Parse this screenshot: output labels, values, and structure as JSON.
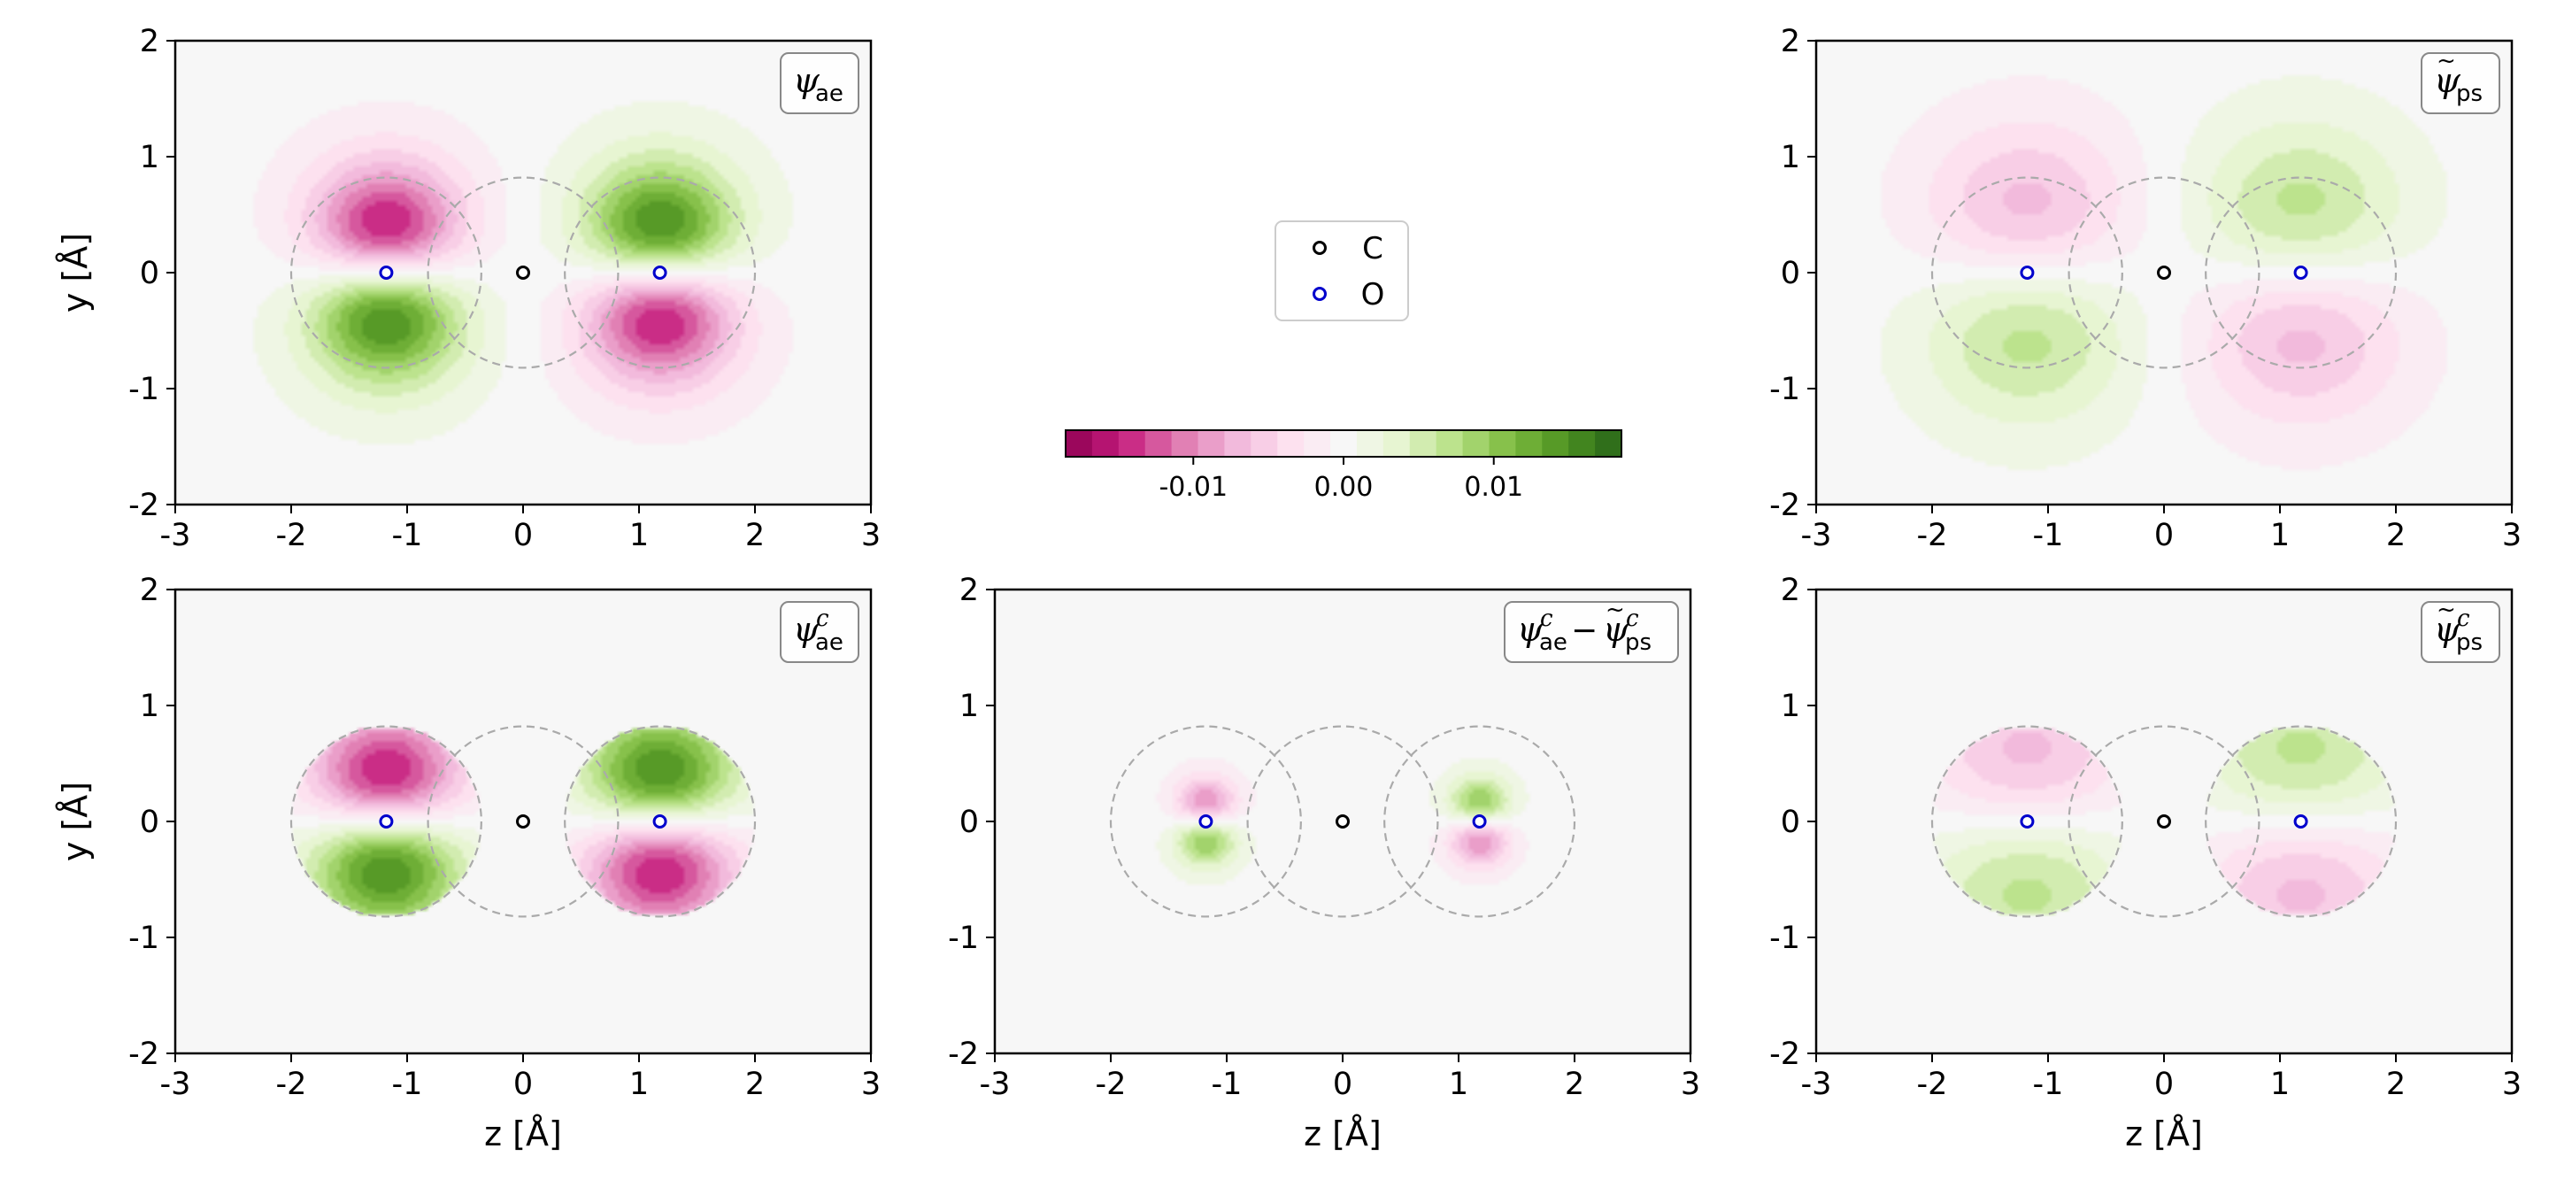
{
  "chart_data": [
    {
      "type": "heatmap",
      "panel": "top-left",
      "label": {
        "symbol": "ψ",
        "sub": "ae",
        "sup": "",
        "tilde": false
      },
      "xlim": [
        -3,
        3
      ],
      "ylim": [
        -2,
        2
      ],
      "xticks": [
        "-3",
        "-2",
        "-1",
        "0",
        "1",
        "2",
        "3"
      ],
      "yticks": [
        "2",
        "1",
        "0",
        "-1",
        "-2"
      ],
      "xlabel": "",
      "ylabel": "y [Å]",
      "field": {
        "model": "pz_antibonding",
        "lobe_width": 0.42,
        "tail_width": 0.6,
        "tail_weight": 0.35,
        "amplitude": 1.0,
        "cutoff": null
      },
      "background": "#f7f7f5"
    },
    {
      "type": "heatmap",
      "panel": "top-right",
      "label": {
        "symbol": "ψ",
        "sub": "ps",
        "sup": "",
        "tilde": true
      },
      "xlim": [
        -3,
        3
      ],
      "ylim": [
        -2,
        2
      ],
      "xticks": [
        "-3",
        "-2",
        "-1",
        "0",
        "1",
        "2",
        "3"
      ],
      "yticks": [
        "2",
        "1",
        "0",
        "-1",
        "-2"
      ],
      "xlabel": "",
      "ylabel": "",
      "field": {
        "model": "pz_smooth",
        "lobe_width": 0.6,
        "tail_width": 0.75,
        "tail_weight": 0.3,
        "amplitude": 0.45,
        "cutoff": null
      },
      "background": "#f7f7f5"
    },
    {
      "type": "heatmap",
      "panel": "bottom-left",
      "label": {
        "symbol": "ψ",
        "sub": "ae",
        "sup": "c",
        "tilde": false
      },
      "xlim": [
        -3,
        3
      ],
      "ylim": [
        -2,
        2
      ],
      "xticks": [
        "-3",
        "-2",
        "-1",
        "0",
        "1",
        "2",
        "3"
      ],
      "yticks": [
        "2",
        "1",
        "0",
        "-1",
        "-2"
      ],
      "xlabel": "z [Å]",
      "ylabel": "y [Å]",
      "field": {
        "model": "pz_antibonding",
        "lobe_width": 0.42,
        "tail_width": 0.6,
        "tail_weight": 0.35,
        "amplitude": 1.0,
        "cutoff": 0.82
      },
      "background": "#f7f7f5"
    },
    {
      "type": "heatmap",
      "panel": "bottom-middle",
      "label": {
        "symbol": "ψ",
        "sub": "ae",
        "sup": "c",
        "tilde": false,
        "minus": {
          "symbol": "ψ",
          "sub": "ps",
          "sup": "c",
          "tilde": true
        }
      },
      "xlim": [
        -3,
        3
      ],
      "ylim": [
        -2,
        2
      ],
      "xticks": [
        "-3",
        "-2",
        "-1",
        "0",
        "1",
        "2",
        "3"
      ],
      "yticks": [
        "2",
        "1",
        "0",
        "-1",
        "-2"
      ],
      "xlabel": "z [Å]",
      "ylabel": "",
      "field": {
        "model": "pz_difference",
        "lobe_width": 0.18,
        "tail_width": 0.25,
        "tail_weight": 0.2,
        "amplitude": 0.7,
        "cutoff": 0.82
      },
      "background": "#f7f7f5"
    },
    {
      "type": "heatmap",
      "panel": "bottom-right",
      "label": {
        "symbol": "ψ",
        "sub": "ps",
        "sup": "c",
        "tilde": true
      },
      "xlim": [
        -3,
        3
      ],
      "ylim": [
        -2,
        2
      ],
      "xticks": [
        "-3",
        "-2",
        "-1",
        "0",
        "1",
        "2",
        "3"
      ],
      "yticks": [
        "2",
        "1",
        "0",
        "-1",
        "-2"
      ],
      "xlabel": "z [Å]",
      "ylabel": "",
      "field": {
        "model": "pz_smooth",
        "lobe_width": 0.6,
        "tail_width": 0.75,
        "tail_weight": 0.3,
        "amplitude": 0.45,
        "cutoff": 0.82
      },
      "background": "#f7f7f5"
    }
  ],
  "atoms": [
    {
      "name": "C",
      "z": 0.0,
      "y": 0.0,
      "color": "#000000"
    },
    {
      "name": "O",
      "z": -1.18,
      "y": 0.0,
      "color": "#0000cc"
    },
    {
      "name": "O",
      "z": 1.18,
      "y": 0.0,
      "color": "#0000cc"
    }
  ],
  "augmentation_spheres": {
    "radius": 0.82,
    "centers_z": [
      -1.18,
      0.0,
      1.18
    ],
    "color": "#aaaaaa"
  },
  "colorbar": {
    "colormap": "PiYG",
    "vmin": -0.0185,
    "vmax": 0.0185,
    "ticks": [
      {
        "value": -0.01,
        "label": "-0.01"
      },
      {
        "value": 0.0,
        "label": "0.00"
      },
      {
        "value": 0.01,
        "label": "0.01"
      }
    ],
    "levels": 21
  },
  "legend": {
    "placement": "top-center",
    "entries": [
      {
        "label": "C",
        "color": "#000000"
      },
      {
        "label": "O",
        "color": "#0000cc"
      }
    ]
  }
}
